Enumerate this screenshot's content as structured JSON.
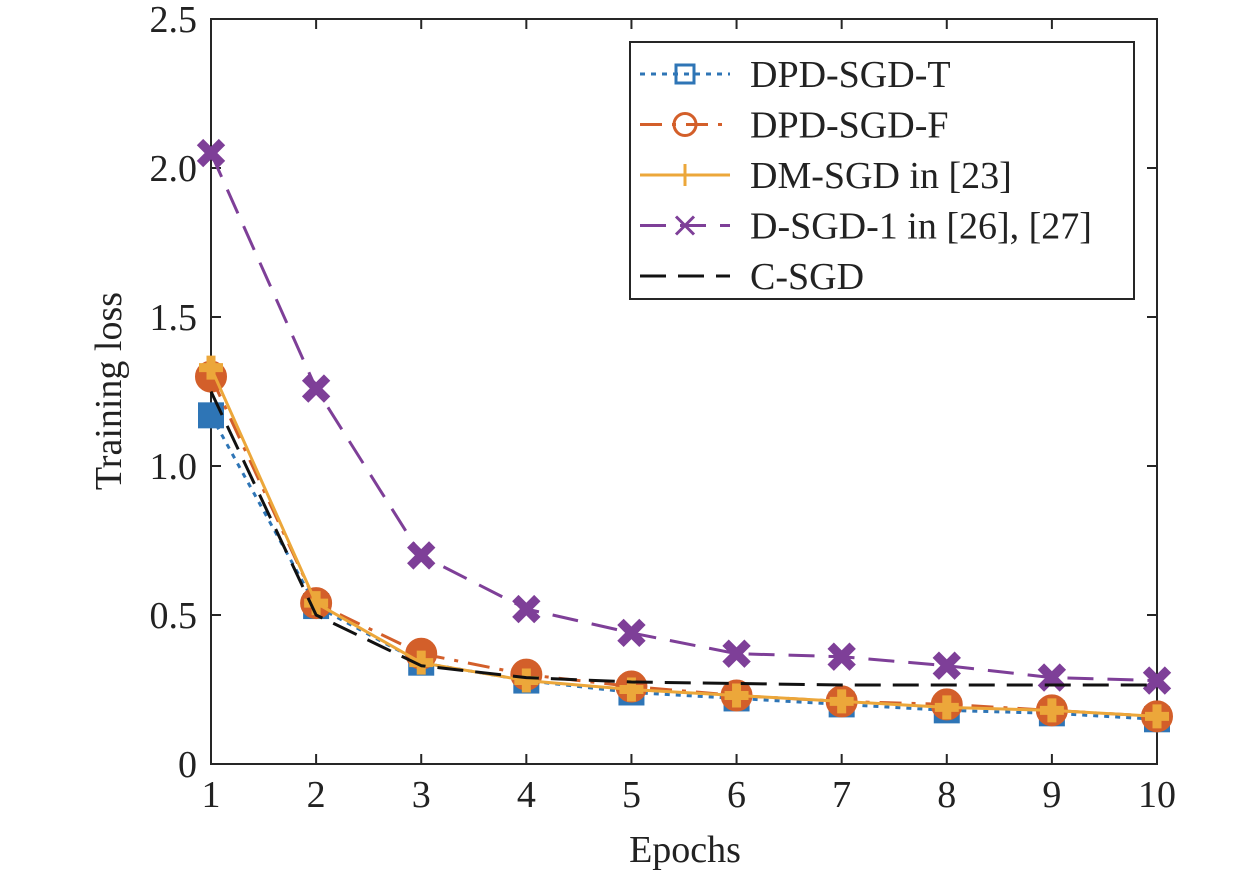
{
  "chart_data": {
    "type": "line",
    "title": "",
    "xlabel": "Epochs",
    "ylabel": "Training loss",
    "xlim": [
      1,
      10
    ],
    "ylim": [
      0,
      2.5
    ],
    "x": [
      1,
      2,
      3,
      4,
      5,
      6,
      7,
      8,
      9,
      10
    ],
    "xticks": [
      "1",
      "2",
      "3",
      "4",
      "5",
      "6",
      "7",
      "8",
      "9",
      "10"
    ],
    "yticks": [
      {
        "value": 0,
        "label": "0"
      },
      {
        "value": 0.5,
        "label": "0.5"
      },
      {
        "value": 1.0,
        "label": "1.0"
      },
      {
        "value": 1.5,
        "label": "1.5"
      },
      {
        "value": 2.0,
        "label": "2.0"
      },
      {
        "value": 2.5,
        "label": "2.5"
      }
    ],
    "grid": false,
    "legend_position": "top-right",
    "series": [
      {
        "name": "DPD-SGD-T",
        "color": "#2e75b6",
        "dash": "dotted",
        "marker": "square",
        "values": [
          1.17,
          0.53,
          0.34,
          0.28,
          0.24,
          0.22,
          0.2,
          0.18,
          0.17,
          0.15
        ]
      },
      {
        "name": "DPD-SGD-F",
        "color": "#d35f2a",
        "dash": "dashdot",
        "marker": "circle",
        "values": [
          1.3,
          0.54,
          0.37,
          0.3,
          0.26,
          0.23,
          0.21,
          0.2,
          0.18,
          0.16
        ]
      },
      {
        "name": "DM-SGD in [23]",
        "color": "#eca73a",
        "dash": "solid",
        "marker": "plus",
        "values": [
          1.33,
          0.54,
          0.34,
          0.28,
          0.25,
          0.23,
          0.21,
          0.19,
          0.18,
          0.16
        ]
      },
      {
        "name": "D-SGD-1 in [26], [27]",
        "color": "#7e3f98",
        "dash": "longdash",
        "marker": "x",
        "values": [
          2.05,
          1.26,
          0.7,
          0.52,
          0.44,
          0.37,
          0.36,
          0.33,
          0.29,
          0.28
        ]
      },
      {
        "name": "C-SGD",
        "color": "#111111",
        "dash": "dashed",
        "marker": "none",
        "values": [
          1.25,
          0.5,
          0.33,
          0.29,
          0.275,
          0.27,
          0.265,
          0.265,
          0.265,
          0.265
        ]
      }
    ]
  }
}
